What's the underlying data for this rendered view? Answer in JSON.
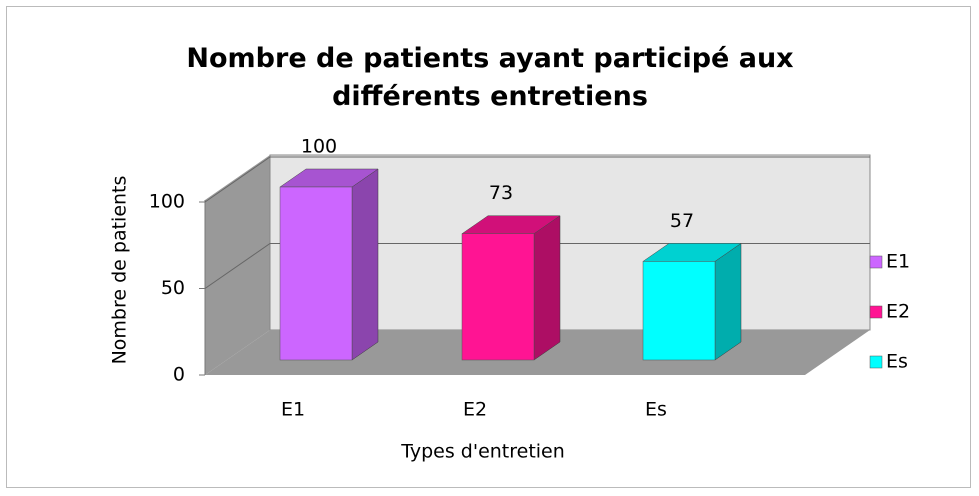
{
  "chart_data": {
    "type": "bar3d",
    "title": "Nombre de patients ayant participé aux différents entretiens",
    "x_label": "Types d'entretien",
    "y_label": "Nombre de patients",
    "categories": [
      "E1",
      "E2",
      "Es"
    ],
    "values": [
      100,
      73,
      57
    ],
    "colors": [
      "#cc66ff",
      "#ff1493",
      "#00ffff"
    ],
    "ylim": [
      0,
      100
    ],
    "yticks": [
      0,
      50,
      100
    ],
    "grid": true,
    "legend": "right"
  }
}
